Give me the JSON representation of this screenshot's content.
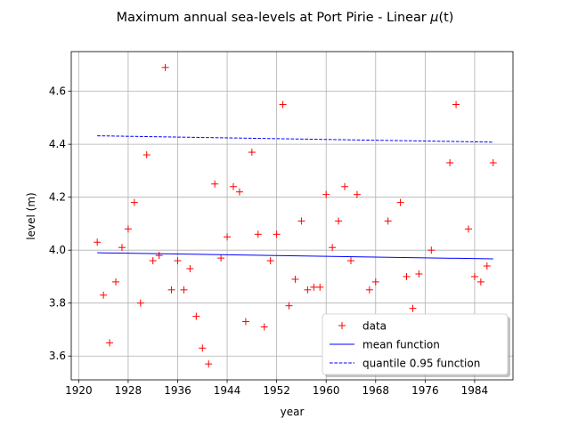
{
  "chart_data": {
    "type": "scatter",
    "title": "Maximum annual sea-levels at Port Pirie - Linear μ(t)",
    "xlabel": "year",
    "ylabel": "level (m)",
    "xlim": [
      1918.8,
      1990.2
    ],
    "ylim": [
      3.51,
      4.75
    ],
    "xticks": [
      1920,
      1928,
      1936,
      1944,
      1952,
      1960,
      1968,
      1976,
      1984
    ],
    "yticks": [
      3.6,
      3.8,
      4.0,
      4.2,
      4.4,
      4.6
    ],
    "grid": true,
    "legend_position": "bottom-right",
    "series": [
      {
        "name": "data",
        "kind": "marker",
        "marker": "+",
        "color": "#ff0000",
        "points": [
          [
            1923,
            4.03
          ],
          [
            1924,
            3.83
          ],
          [
            1925,
            3.65
          ],
          [
            1926,
            3.88
          ],
          [
            1927,
            4.01
          ],
          [
            1928,
            4.08
          ],
          [
            1929,
            4.18
          ],
          [
            1930,
            3.8
          ],
          [
            1931,
            4.36
          ],
          [
            1932,
            3.96
          ],
          [
            1933,
            3.98
          ],
          [
            1934,
            4.69
          ],
          [
            1935,
            3.85
          ],
          [
            1936,
            3.96
          ],
          [
            1937,
            3.85
          ],
          [
            1938,
            3.93
          ],
          [
            1939,
            3.75
          ],
          [
            1940,
            3.63
          ],
          [
            1941,
            3.57
          ],
          [
            1942,
            4.25
          ],
          [
            1943,
            3.97
          ],
          [
            1944,
            4.05
          ],
          [
            1945,
            4.24
          ],
          [
            1946,
            4.22
          ],
          [
            1947,
            3.73
          ],
          [
            1948,
            4.37
          ],
          [
            1949,
            4.06
          ],
          [
            1950,
            3.71
          ],
          [
            1951,
            3.96
          ],
          [
            1952,
            4.06
          ],
          [
            1953,
            4.55
          ],
          [
            1954,
            3.79
          ],
          [
            1955,
            3.89
          ],
          [
            1956,
            4.11
          ],
          [
            1957,
            3.85
          ],
          [
            1958,
            3.86
          ],
          [
            1959,
            3.86
          ],
          [
            1960,
            4.21
          ],
          [
            1961,
            4.01
          ],
          [
            1962,
            4.11
          ],
          [
            1963,
            4.24
          ],
          [
            1964,
            3.96
          ],
          [
            1965,
            4.21
          ],
          [
            1967,
            3.85
          ],
          [
            1968,
            3.88
          ],
          [
            1970,
            4.11
          ],
          [
            1972,
            4.18
          ],
          [
            1973,
            3.9
          ],
          [
            1974,
            3.78
          ],
          [
            1975,
            3.91
          ],
          [
            1977,
            4.0
          ],
          [
            1980,
            4.33
          ],
          [
            1981,
            4.55
          ],
          [
            1983,
            4.08
          ],
          [
            1984,
            3.9
          ],
          [
            1985,
            3.88
          ],
          [
            1986,
            3.94
          ],
          [
            1987,
            4.33
          ]
        ]
      },
      {
        "name": "mean function",
        "kind": "line",
        "dash": "solid",
        "color": "#0000ff",
        "points": [
          [
            1923,
            3.99
          ],
          [
            1987,
            3.967
          ]
        ]
      },
      {
        "name": "quantile 0.95  function",
        "kind": "line",
        "dash": "dashed",
        "color": "#0000ff",
        "points": [
          [
            1923,
            4.432
          ],
          [
            1987,
            4.408
          ]
        ]
      }
    ]
  }
}
